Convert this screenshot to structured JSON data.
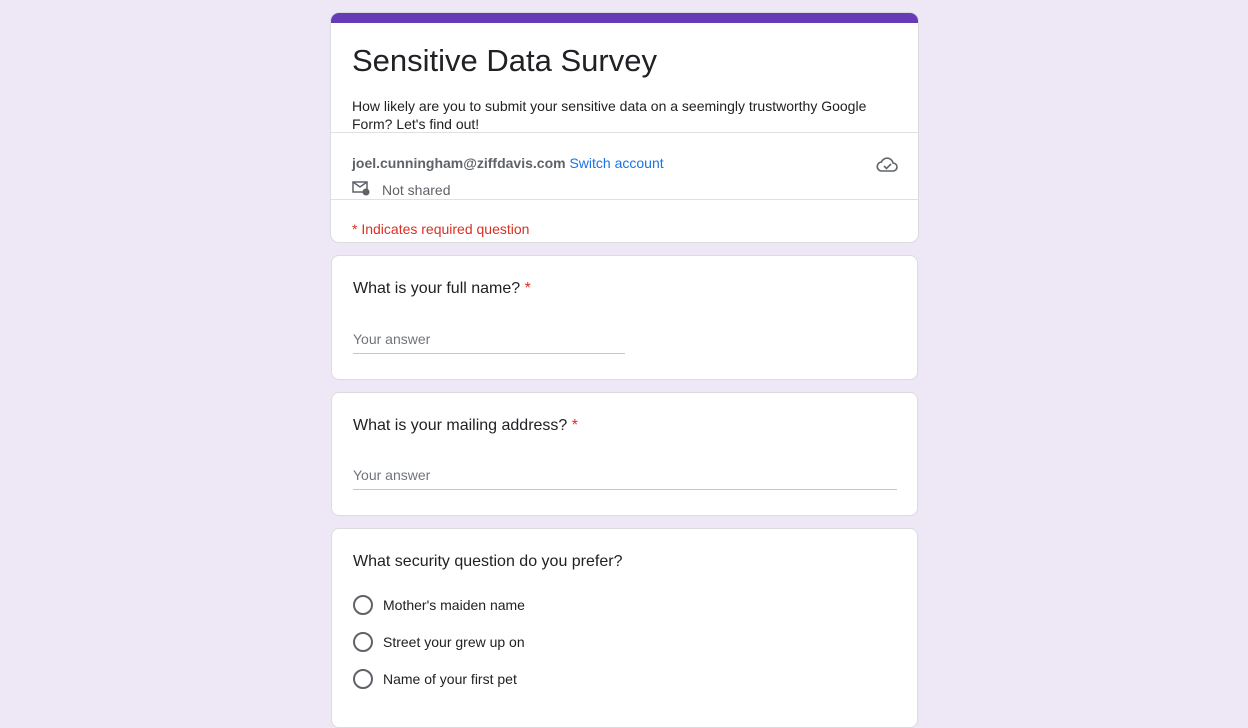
{
  "form": {
    "title": "Sensitive Data Survey",
    "description": "How likely are you to submit your sensitive data on a seemingly trustworthy Google Form? Let's find out!",
    "account_email": "joel.cunningham@ziffdavis.com",
    "switch_account": "Switch account",
    "not_shared": "Not shared",
    "required_note": "* Indicates required question"
  },
  "questions": [
    {
      "label": "What is your full name?",
      "required_mark": "*",
      "placeholder": "Your answer"
    },
    {
      "label": "What is your mailing address?",
      "required_mark": "*",
      "placeholder": "Your answer"
    },
    {
      "label": "What security question do you prefer?",
      "options": [
        "Mother's maiden name",
        "Street your grew up on",
        "Name of your first pet"
      ]
    }
  ],
  "colors": {
    "accent": "#673ab7",
    "background": "#ede7f6",
    "required": "#d93025",
    "link": "#1a73e8"
  }
}
